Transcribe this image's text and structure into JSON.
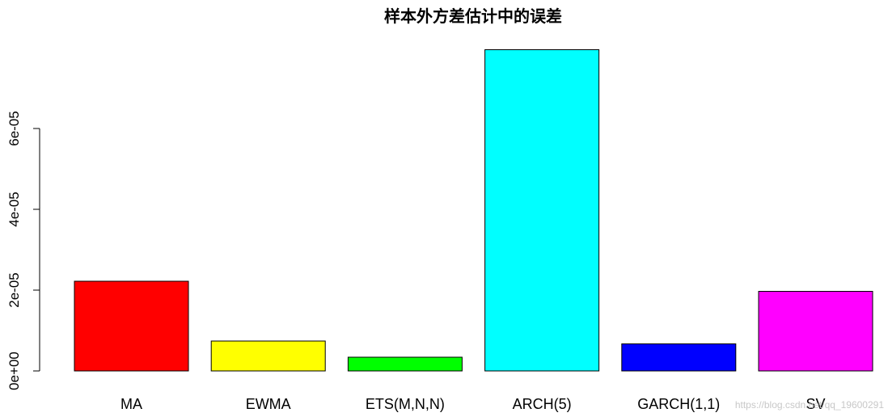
{
  "chart_data": {
    "type": "bar",
    "title": "样本外方差估计中的误差",
    "xlabel": "",
    "ylabel": "",
    "categories": [
      "MA",
      "EWMA",
      "ETS(M,N,N)",
      "ARCH(5)",
      "GARCH(1,1)",
      "SV"
    ],
    "values": [
      2.22e-05,
      7.4e-06,
      3.4e-06,
      7.95e-05,
      6.7e-06,
      1.97e-05
    ],
    "colors": [
      "#ff0000",
      "#ffff00",
      "#00ff00",
      "#00ffff",
      "#0000ff",
      "#ff00ff"
    ],
    "yticks": [
      0,
      2e-05,
      4e-05,
      6e-05
    ],
    "ytick_labels": [
      "0e+00",
      "2e-05",
      "4e-05",
      "6e-05"
    ],
    "ylim": [
      0,
      8e-05
    ],
    "grid": false,
    "legend": "none"
  },
  "watermark": "https://blog.csdn.net/qq_19600291"
}
